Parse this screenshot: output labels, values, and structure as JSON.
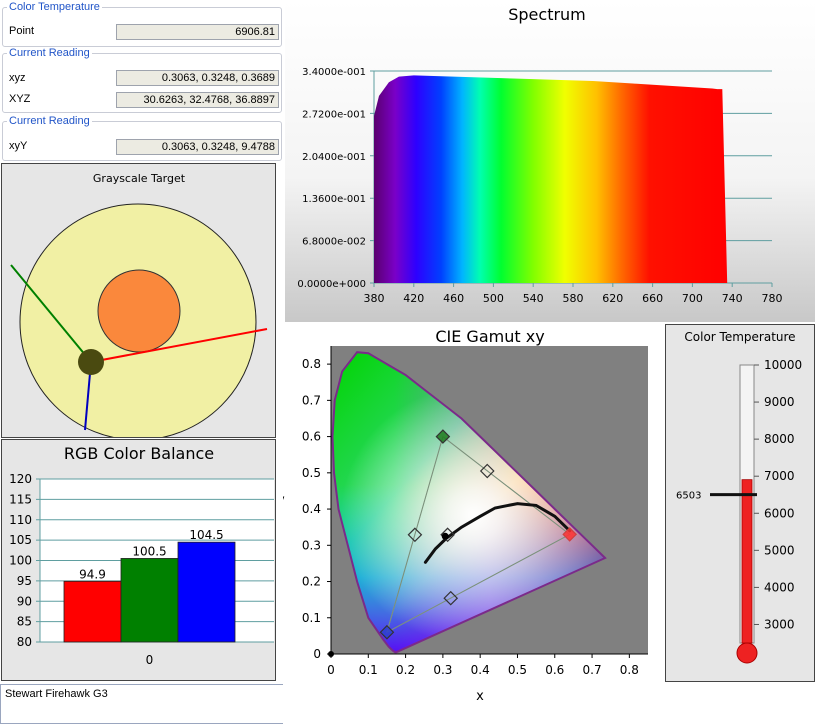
{
  "readings": {
    "color_temperature": {
      "legend": "Color Temperature",
      "label": "Point",
      "value": "6906.81"
    },
    "current_reading_xyz": {
      "legend": "Current Reading",
      "rows": [
        {
          "label": "xyz",
          "value": "0.3063, 0.3248, 0.3689"
        },
        {
          "label": "XYZ",
          "value": "30.6263, 32.4768, 36.8897"
        }
      ]
    },
    "current_reading_xyY": {
      "legend": "Current Reading",
      "rows": [
        {
          "label": "xyY",
          "value": "0.3063, 0.3248, 9.4788"
        }
      ]
    }
  },
  "grayscale_target": {
    "title": "Grayscale Target"
  },
  "spectrum": {
    "title": "Spectrum"
  },
  "cie": {
    "title": "CIE Gamut xy",
    "xlabel": "x",
    "ylabel": "y"
  },
  "thermometer": {
    "title": "Color Temperature",
    "marker_label": "6503"
  },
  "rgb_balance": {
    "title": "RGB Color Balance"
  },
  "notes": {
    "text": "Stewart Firehawk G3"
  },
  "colors": {
    "legend_blue": "#2155c8",
    "red": "#ff0000",
    "green": "#008000",
    "blue": "#0000ff",
    "panel_gray": "#e8e8e8"
  },
  "chart_data": [
    {
      "type": "area",
      "name": "spectrum",
      "title": "Spectrum",
      "x": [
        380,
        385,
        395,
        405,
        420,
        440,
        460,
        480,
        500,
        520,
        540,
        560,
        580,
        600,
        620,
        640,
        660,
        680,
        700,
        720,
        725,
        730,
        735
      ],
      "values": [
        0.268,
        0.3,
        0.322,
        0.331,
        0.333,
        0.332,
        0.331,
        0.33,
        0.329,
        0.328,
        0.327,
        0.326,
        0.325,
        0.324,
        0.322,
        0.32,
        0.318,
        0.316,
        0.314,
        0.312,
        0.311,
        0.311,
        0.0
      ],
      "xlim": [
        380,
        780
      ],
      "ylim": [
        0,
        0.34
      ],
      "xticks": [
        "380",
        "420",
        "460",
        "500",
        "540",
        "580",
        "620",
        "660",
        "700",
        "740",
        "780"
      ],
      "xtick_values": [
        380,
        420,
        460,
        500,
        540,
        580,
        620,
        660,
        700,
        740,
        780
      ],
      "yticks": [
        "0.0000e+000",
        "6.8000e-002",
        "1.3600e-001",
        "2.0400e-001",
        "2.7200e-001",
        "3.4000e-001"
      ],
      "ytick_values": [
        0,
        0.068,
        0.136,
        0.204,
        0.272,
        0.34
      ],
      "grid": true
    },
    {
      "type": "scatter",
      "name": "cie-gamut",
      "title": "CIE Gamut xy",
      "xlabel": "x",
      "ylabel": "y",
      "xlim": [
        0,
        0.85
      ],
      "ylim": [
        0,
        0.85
      ],
      "xticks": [
        "0",
        "0.1",
        "0.2",
        "0.3",
        "0.4",
        "0.5",
        "0.6",
        "0.7",
        "0.8"
      ],
      "xtick_values": [
        0,
        0.1,
        0.2,
        0.3,
        0.4,
        0.5,
        0.6,
        0.7,
        0.8
      ],
      "yticks": [
        "0",
        "0.1",
        "0.2",
        "0.3",
        "0.4",
        "0.5",
        "0.6",
        "0.7",
        "0.8"
      ],
      "ytick_values": [
        0,
        0.1,
        0.2,
        0.3,
        0.4,
        0.5,
        0.6,
        0.7,
        0.8
      ],
      "locus": [
        [
          0.175,
          0.005
        ],
        [
          0.172,
          0.005
        ],
        [
          0.166,
          0.009
        ],
        [
          0.155,
          0.02
        ],
        [
          0.14,
          0.04
        ],
        [
          0.1,
          0.1
        ],
        [
          0.07,
          0.2
        ],
        [
          0.045,
          0.3
        ],
        [
          0.02,
          0.4
        ],
        [
          0.008,
          0.5
        ],
        [
          0.004,
          0.6
        ],
        [
          0.01,
          0.7
        ],
        [
          0.03,
          0.78
        ],
        [
          0.07,
          0.833
        ],
        [
          0.1,
          0.83
        ],
        [
          0.15,
          0.8
        ],
        [
          0.2,
          0.77
        ],
        [
          0.25,
          0.73
        ],
        [
          0.3,
          0.69
        ],
        [
          0.35,
          0.65
        ],
        [
          0.4,
          0.6
        ],
        [
          0.45,
          0.55
        ],
        [
          0.5,
          0.5
        ],
        [
          0.55,
          0.45
        ],
        [
          0.6,
          0.4
        ],
        [
          0.65,
          0.35
        ],
        [
          0.7,
          0.3
        ],
        [
          0.735,
          0.265
        ],
        [
          0.175,
          0.005
        ]
      ],
      "target_gamut": [
        [
          0.64,
          0.33
        ],
        [
          0.3,
          0.6
        ],
        [
          0.15,
          0.06
        ]
      ],
      "target_points": [
        [
          0.64,
          0.33
        ],
        [
          0.3,
          0.6
        ],
        [
          0.15,
          0.06
        ],
        [
          0.225,
          0.329
        ],
        [
          0.419,
          0.505
        ],
        [
          0.321,
          0.154
        ],
        [
          0.3127,
          0.329
        ]
      ],
      "measured_gamut": [
        [
          0.64,
          0.33
        ],
        [
          0.3,
          0.6
        ],
        [
          0.15,
          0.06
        ]
      ],
      "measured_point": [
        0.3063,
        0.3248
      ],
      "planckian": [
        [
          0.253,
          0.253
        ],
        [
          0.28,
          0.29
        ],
        [
          0.31,
          0.32
        ],
        [
          0.35,
          0.35
        ],
        [
          0.4,
          0.38
        ],
        [
          0.44,
          0.403
        ],
        [
          0.5,
          0.415
        ],
        [
          0.55,
          0.41
        ],
        [
          0.6,
          0.38
        ],
        [
          0.64,
          0.34
        ]
      ],
      "grid": false
    },
    {
      "type": "bar",
      "name": "rgb-color-balance",
      "title": "RGB Color Balance",
      "categories": [
        "0"
      ],
      "series": [
        {
          "color": "#ff0000",
          "values": [
            94.9
          ]
        },
        {
          "color": "#008000",
          "values": [
            100.5
          ]
        },
        {
          "color": "#0000ff",
          "values": [
            104.5
          ]
        }
      ],
      "data_labels": [
        "94.9",
        "100.5",
        "104.5"
      ],
      "ylim": [
        80,
        120
      ],
      "yticks": [
        "80",
        "85",
        "90",
        "95",
        "100",
        "105",
        "110",
        "115",
        "120"
      ],
      "ytick_values": [
        80,
        85,
        90,
        95,
        100,
        105,
        110,
        115,
        120
      ],
      "grid": true
    },
    {
      "type": "bar",
      "name": "color-temperature-thermometer",
      "title": "Color Temperature",
      "values": [
        6906.81
      ],
      "marker": 6503,
      "marker_label": "6503",
      "ylim": [
        2500,
        10000
      ],
      "yticks": [
        "3000",
        "4000",
        "5000",
        "6000",
        "7000",
        "8000",
        "9000",
        "10000"
      ],
      "ytick_values": [
        3000,
        4000,
        5000,
        6000,
        7000,
        8000,
        9000,
        10000
      ]
    },
    {
      "type": "scatter",
      "name": "grayscale-target",
      "title": "Grayscale Target",
      "note": "target plot with red, green and blue error vectors"
    }
  ]
}
